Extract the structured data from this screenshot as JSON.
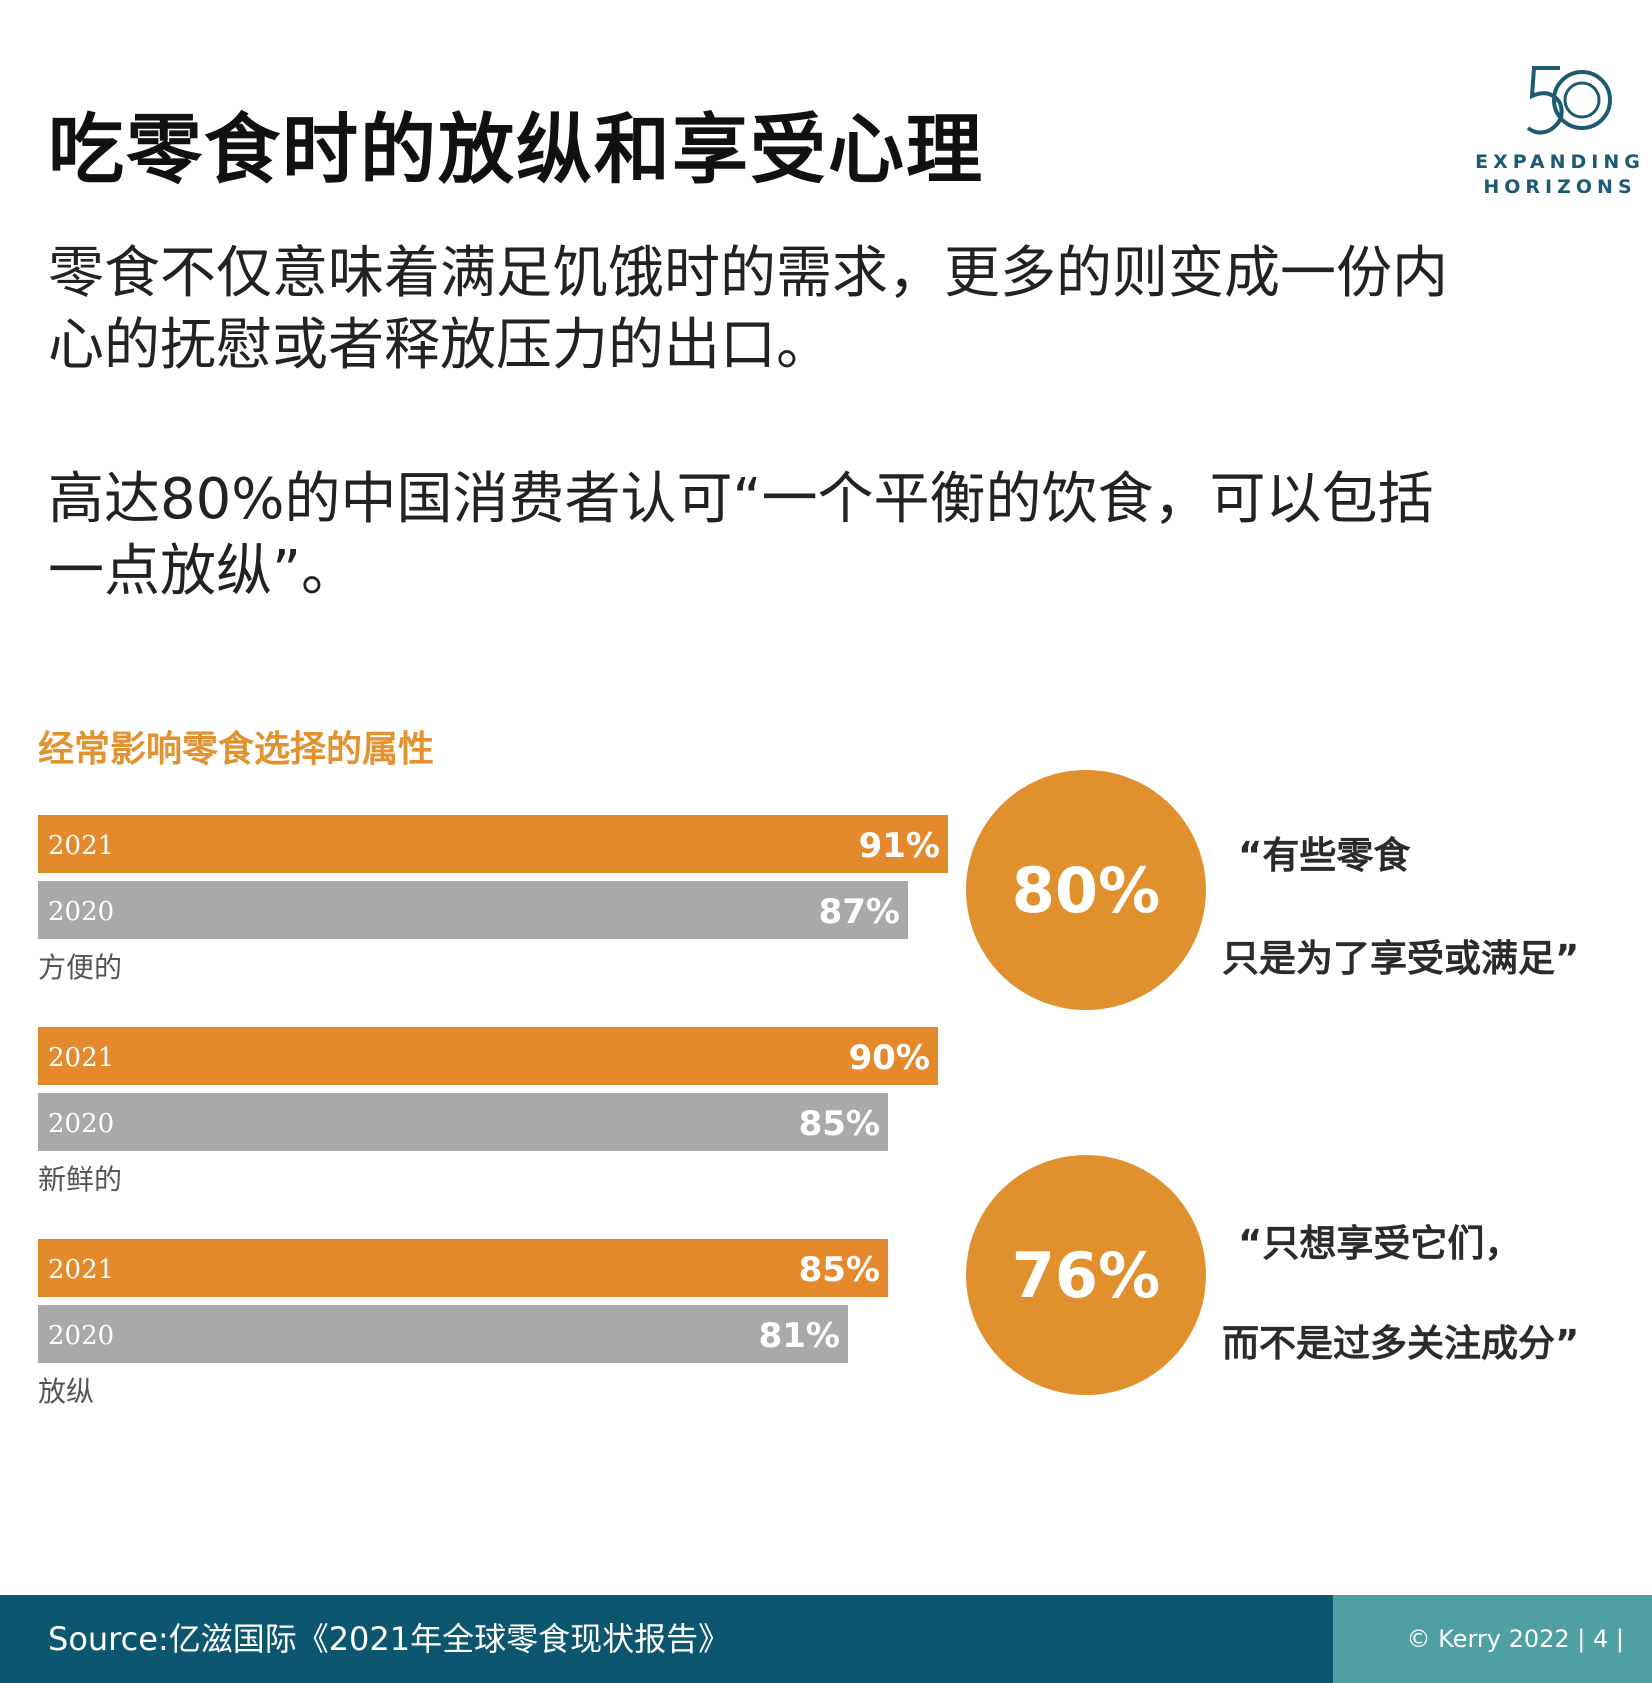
{
  "title": "吃零食时的放纵和享受心理",
  "logo": {
    "number": "50",
    "line1": "EXPANDING",
    "line2": "HORIZONS"
  },
  "paragraph1": "零食不仅意味着满足饥饿时的需求，更多的则变成一份内心的抚慰或者释放压力的出口。",
  "paragraph2": "高达80%的中国消费者认可“一个平衡的饮食，可以包括一点放纵”。",
  "chart_data": {
    "type": "bar",
    "title": "经常影响零食选择的属性",
    "orientation": "horizontal",
    "groups": [
      {
        "label": "方便的",
        "bars": [
          {
            "year": "2021",
            "value": 91,
            "label": "91%"
          },
          {
            "year": "2020",
            "value": 87,
            "label": "87%"
          }
        ]
      },
      {
        "label": "新鲜的",
        "bars": [
          {
            "year": "2021",
            "value": 90,
            "label": "90%"
          },
          {
            "year": "2020",
            "value": 85,
            "label": "85%"
          }
        ]
      },
      {
        "label": "放纵",
        "bars": [
          {
            "year": "2021",
            "value": 85,
            "label": "85%"
          },
          {
            "year": "2020",
            "value": 81,
            "label": "81%"
          }
        ]
      }
    ],
    "series_colors": {
      "2021": "#e58a2c",
      "2020": "#a9a9a9"
    },
    "xlim": [
      0,
      100
    ]
  },
  "stats": [
    {
      "value": "80%",
      "quote_line1": "“有些零食",
      "quote_line2": "只是为了享受或满足”"
    },
    {
      "value": "76%",
      "quote_line1": "“只想享受它们，",
      "quote_line2": "而不是过多关注成分”"
    }
  ],
  "footer": {
    "source": "Source:亿滋国际《2021年全球零食现状报告》",
    "copyright": "© Kerry 2022 | 4 |"
  },
  "colors": {
    "accent": "#e0912e",
    "footer_dark": "#0d566f",
    "footer_light": "#4ea0a3"
  }
}
